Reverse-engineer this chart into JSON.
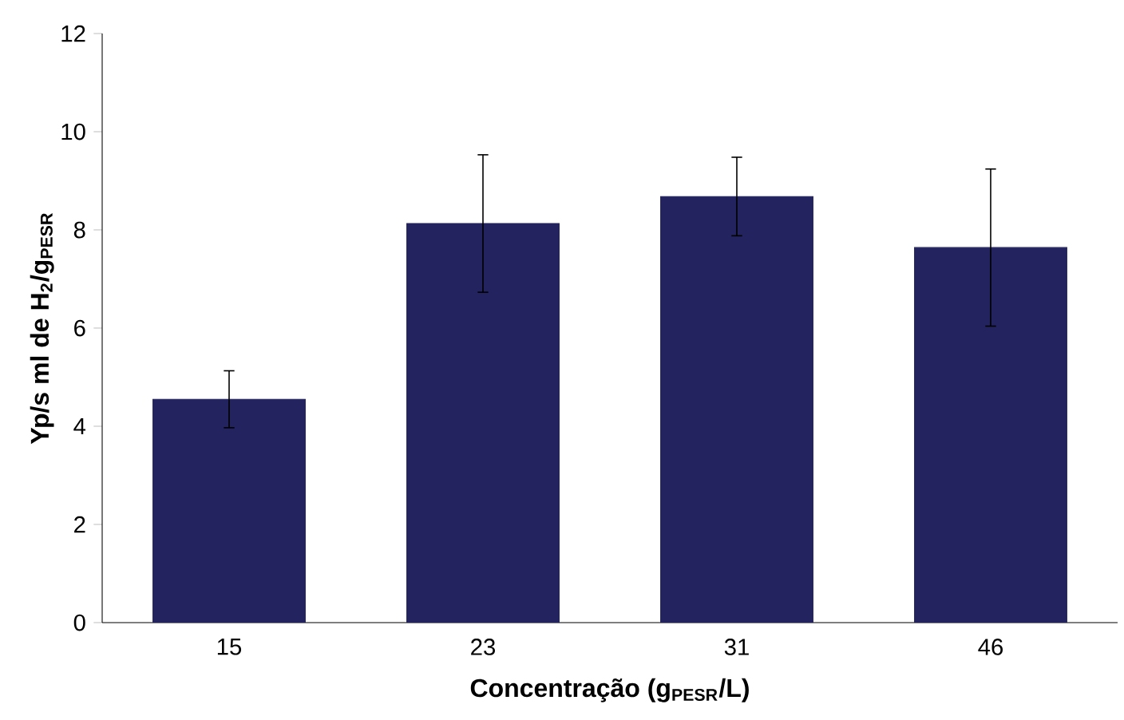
{
  "chart_data": {
    "type": "bar",
    "xlabel": "**Concentração (g$_{PESR}$/L)**",
    "ylabel": "**Yp/s  ml de H$_{2}$/g$_{PESR}$**",
    "categories": [
      "15",
      "23",
      "31",
      "46"
    ],
    "values": [
      4.55,
      8.13,
      8.68,
      7.64
    ],
    "errors": [
      0.58,
      1.4,
      0.8,
      1.6
    ],
    "color": "#23235f",
    "ylim": [
      0,
      12
    ],
    "yticks": [
      0,
      2,
      4,
      6,
      8,
      10,
      12
    ]
  }
}
